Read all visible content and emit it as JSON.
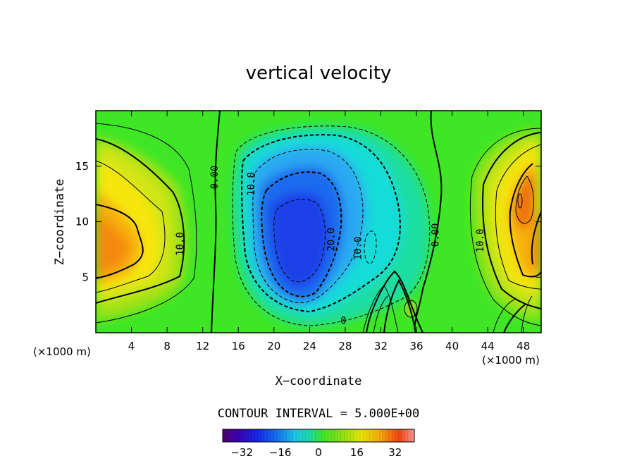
{
  "chart_data": {
    "type": "heatmap",
    "title": "vertical velocity",
    "xlabel": "X−coordinate",
    "ylabel": "Z−coordinate",
    "x_unit": "(×1000 m)",
    "y_unit": "(×1000 m)",
    "xlim": [
      0,
      50
    ],
    "ylim": [
      0,
      20
    ],
    "x_ticks": [
      4,
      8,
      12,
      16,
      20,
      24,
      28,
      32,
      36,
      40,
      44,
      48
    ],
    "y_ticks": [
      5,
      10,
      15
    ],
    "contour_interval_label": "CONTOUR INTERVAL = 5.000E+00",
    "colorbar": {
      "vmin": -40,
      "vmax": 40,
      "ticks": [
        -32,
        -16,
        0,
        16,
        32
      ],
      "tick_labels": [
        "−32",
        "−16",
        "0",
        "16",
        "32"
      ]
    },
    "contour_labels": [
      {
        "text": "0.00",
        "x": 13.7,
        "y": 14.0
      },
      {
        "text": "10.0",
        "x": 9.8,
        "y": 8.0
      },
      {
        "text": "10.0",
        "x": 17.8,
        "y": 13.4
      },
      {
        "text": "20.0",
        "x": 26.8,
        "y": 8.4
      },
      {
        "text": "10.0",
        "x": 29.8,
        "y": 7.6
      },
      {
        "text": "0.00",
        "x": 38.5,
        "y": 8.8
      },
      {
        "text": "10.0",
        "x": 43.5,
        "y": 8.3
      },
      {
        "text": "0",
        "x": 27.8,
        "y": 0.8
      }
    ],
    "features": [
      {
        "name": "left updraft",
        "x": 1.5,
        "z": 8.2,
        "peak_w": 28
      },
      {
        "name": "central downdraft",
        "x": 23.5,
        "z": 7.0,
        "peak_w": -30
      },
      {
        "name": "right updraft",
        "x": 47.3,
        "z": 12.3,
        "peak_w": 34
      },
      {
        "name": "right updraft lower",
        "x": 49.5,
        "z": 8.0,
        "peak_w": 26
      }
    ]
  }
}
